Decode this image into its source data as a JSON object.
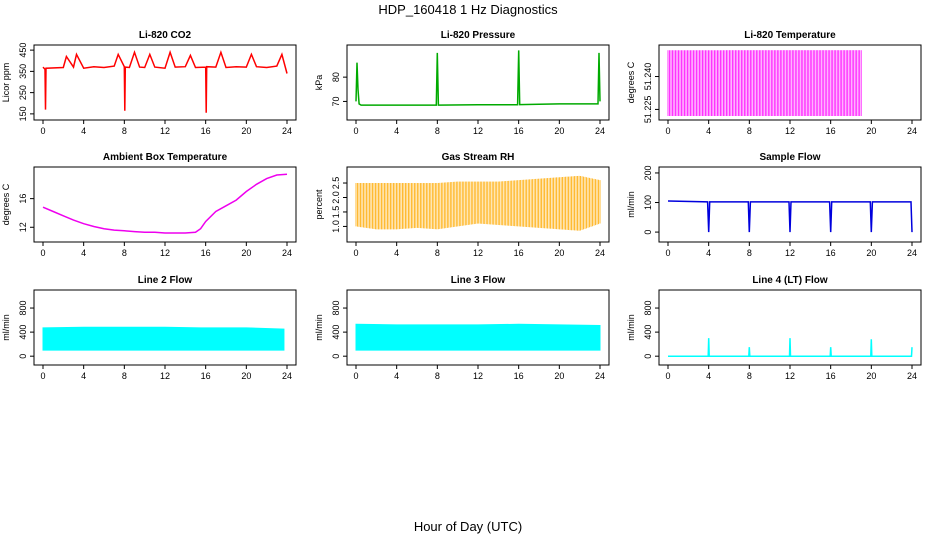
{
  "figure": {
    "title": "HDP_160418  1 Hz Diagnostics",
    "xlabel": "Hour of Day (UTC)"
  },
  "chart_data": [
    {
      "type": "line",
      "title": "Li-820 CO2",
      "ylabel": "Licor ppm",
      "color": "#ff0000",
      "xlim": [
        0,
        24
      ],
      "ylim": [
        140,
        460
      ],
      "xticks": [
        "0",
        "4",
        "8",
        "12",
        "16",
        "20",
        "24"
      ],
      "yticks": [
        "150",
        "250",
        "350",
        "450"
      ],
      "x": [
        0,
        0.2,
        0.25,
        0.3,
        2,
        2.3,
        3,
        3.3,
        4,
        5,
        6,
        7,
        7.4,
        8,
        8.05,
        8.1,
        8.5,
        9,
        9.5,
        10,
        10.5,
        11,
        12,
        12.5,
        13,
        14,
        14.5,
        15,
        16,
        16.05,
        16.1,
        17,
        17.5,
        18,
        19,
        20,
        20.5,
        21,
        22,
        23,
        23.5,
        24
      ],
      "y": [
        370,
        360,
        170,
        365,
        368,
        420,
        370,
        430,
        365,
        372,
        368,
        375,
        430,
        372,
        165,
        370,
        368,
        440,
        370,
        368,
        430,
        370,
        365,
        440,
        370,
        372,
        425,
        368,
        370,
        155,
        372,
        370,
        440,
        368,
        372,
        370,
        430,
        372,
        368,
        375,
        430,
        340
      ]
    },
    {
      "type": "line",
      "title": "Li-820 Pressure",
      "ylabel": "kPa",
      "color": "#00aa00",
      "xlim": [
        0,
        24
      ],
      "ylim": [
        64,
        92
      ],
      "xticks": [
        "0",
        "4",
        "8",
        "12",
        "16",
        "20",
        "24"
      ],
      "yticks": [
        "70",
        "80"
      ],
      "x": [
        0,
        0.1,
        0.2,
        0.3,
        0.5,
        1,
        4,
        7.9,
        8,
        8.1,
        12,
        15.9,
        16,
        16.1,
        18,
        20,
        22,
        23.8,
        23.9,
        24
      ],
      "y": [
        70,
        86,
        75,
        69,
        68.5,
        68.5,
        68.5,
        68.5,
        90,
        68.5,
        68.6,
        68.6,
        91,
        68.7,
        68.8,
        69,
        69,
        69,
        90,
        70
      ]
    },
    {
      "type": "line",
      "title": "Li-820 Temperature",
      "ylabel": "degrees C",
      "color": "#ff00ff",
      "xlim": [
        0,
        24
      ],
      "ylim": [
        51.222,
        51.253
      ],
      "xticks": [
        "0",
        "4",
        "8",
        "12",
        "16",
        "20",
        "24"
      ],
      "yticks": [
        "51.225",
        "51.240"
      ],
      "series": [
        {
          "x": [
            0,
            1,
            2,
            3,
            4,
            5,
            6,
            7,
            8,
            9,
            10,
            11,
            12,
            13,
            14,
            15,
            16,
            17,
            18,
            19
          ],
          "low": [
            51.222,
            51.222,
            51.222,
            51.222,
            51.222,
            51.222,
            51.222,
            51.222,
            51.222,
            51.222,
            51.222,
            51.222,
            51.222,
            51.222,
            51.222,
            51.222,
            51.222,
            51.222,
            51.222,
            51.222
          ],
          "high": [
            51.252,
            51.252,
            51.252,
            51.252,
            51.252,
            51.252,
            51.252,
            51.252,
            51.252,
            51.252,
            51.252,
            51.252,
            51.252,
            51.252,
            51.252,
            51.252,
            51.252,
            51.252,
            51.252,
            51.252
          ]
        },
        {
          "x": [
            19,
            24
          ],
          "low": [
            51.252,
            51.252
          ],
          "high": [
            51.252,
            51.252
          ]
        }
      ]
    },
    {
      "type": "line",
      "title": "Ambient Box Temperature",
      "ylabel": "degrees C",
      "color": "#ee00ee",
      "xlim": [
        0,
        24
      ],
      "ylim": [
        10.5,
        20
      ],
      "xticks": [
        "0",
        "4",
        "8",
        "12",
        "16",
        "20",
        "24"
      ],
      "yticks": [
        "12",
        "16"
      ],
      "x": [
        0,
        1,
        2,
        3,
        4,
        5,
        6,
        7,
        8,
        9,
        10,
        11,
        12,
        13,
        14,
        15,
        15.5,
        16,
        17,
        18,
        19,
        20,
        21,
        22,
        23,
        24
      ],
      "y": [
        14.8,
        14.2,
        13.6,
        13.0,
        12.5,
        12.1,
        11.8,
        11.6,
        11.5,
        11.4,
        11.3,
        11.3,
        11.2,
        11.2,
        11.2,
        11.3,
        11.8,
        12.8,
        14.2,
        15.0,
        15.8,
        17.0,
        18.0,
        18.8,
        19.3,
        19.4
      ]
    },
    {
      "type": "line",
      "title": "Gas Stream RH",
      "ylabel": "percent",
      "color": "#ffaa00",
      "xlim": [
        0,
        24
      ],
      "ylim": [
        0.6,
        2.95
      ],
      "xticks": [
        "0",
        "4",
        "8",
        "12",
        "16",
        "20",
        "24"
      ],
      "yticks": [
        "1.0",
        "1.5",
        "2.0",
        "2.5"
      ],
      "series": [
        {
          "x": [
            0,
            2,
            4,
            6,
            8,
            10,
            12,
            14,
            16,
            18,
            20,
            22,
            24
          ],
          "low": [
            1.0,
            0.9,
            0.9,
            0.95,
            0.9,
            1.0,
            1.1,
            1.05,
            1.0,
            0.95,
            0.9,
            0.85,
            1.1
          ],
          "high": [
            2.5,
            2.5,
            2.5,
            2.5,
            2.5,
            2.55,
            2.55,
            2.55,
            2.6,
            2.65,
            2.7,
            2.75,
            2.6
          ]
        }
      ]
    },
    {
      "type": "line",
      "title": "Sample Flow",
      "ylabel": "ml/min",
      "color": "#0000dd",
      "xlim": [
        0,
        24
      ],
      "ylim": [
        -20,
        210
      ],
      "xticks": [
        "0",
        "4",
        "8",
        "12",
        "16",
        "20",
        "24"
      ],
      "yticks": [
        "0",
        "100",
        "200"
      ],
      "x": [
        0,
        3.9,
        4,
        4.1,
        7.9,
        8,
        8.1,
        11.9,
        12,
        12.1,
        15.9,
        16,
        16.1,
        19.9,
        20,
        20.1,
        23.9,
        24
      ],
      "y": [
        105,
        102,
        0,
        102,
        102,
        0,
        102,
        102,
        0,
        102,
        102,
        0,
        102,
        102,
        0,
        102,
        102,
        0
      ]
    },
    {
      "type": "area",
      "title": "Line 2 Flow",
      "ylabel": "ml/min",
      "color": "#00ffff",
      "xlim": [
        0,
        24
      ],
      "ylim": [
        -80,
        1050
      ],
      "xticks": [
        "0",
        "4",
        "8",
        "12",
        "16",
        "20",
        "24"
      ],
      "yticks": [
        "0",
        "400",
        "800"
      ],
      "series": [
        {
          "x": [
            0,
            4,
            8,
            12,
            15.5,
            20,
            23.7
          ],
          "low": [
            100,
            100,
            100,
            100,
            100,
            100,
            100
          ],
          "high": [
            470,
            480,
            480,
            480,
            470,
            470,
            450
          ]
        }
      ]
    },
    {
      "type": "area",
      "title": "Line 3 Flow",
      "ylabel": "ml/min",
      "color": "#00ffff",
      "xlim": [
        0,
        24
      ],
      "ylim": [
        -80,
        1050
      ],
      "xticks": [
        "0",
        "4",
        "8",
        "12",
        "16",
        "20",
        "24"
      ],
      "yticks": [
        "0",
        "400",
        "800"
      ],
      "series": [
        {
          "x": [
            0,
            4,
            8,
            12,
            16,
            20,
            24
          ],
          "low": [
            100,
            100,
            100,
            100,
            100,
            100,
            100
          ],
          "high": [
            530,
            520,
            520,
            520,
            530,
            520,
            510
          ]
        }
      ]
    },
    {
      "type": "line",
      "title": "Line 4 (LT) Flow",
      "ylabel": "ml/min",
      "color": "#00ffff",
      "xlim": [
        0,
        24
      ],
      "ylim": [
        -80,
        1050
      ],
      "xticks": [
        "0",
        "4",
        "8",
        "12",
        "16",
        "20",
        "24"
      ],
      "yticks": [
        "0",
        "400",
        "800"
      ],
      "x": [
        0,
        3.95,
        4,
        4.05,
        7.95,
        8,
        8.05,
        11.95,
        12,
        12.05,
        15.95,
        16,
        16.05,
        19.95,
        20,
        20.05,
        23.95,
        24
      ],
      "y": [
        0,
        0,
        300,
        0,
        0,
        150,
        0,
        0,
        300,
        0,
        0,
        150,
        0,
        0,
        280,
        0,
        0,
        150
      ]
    }
  ]
}
